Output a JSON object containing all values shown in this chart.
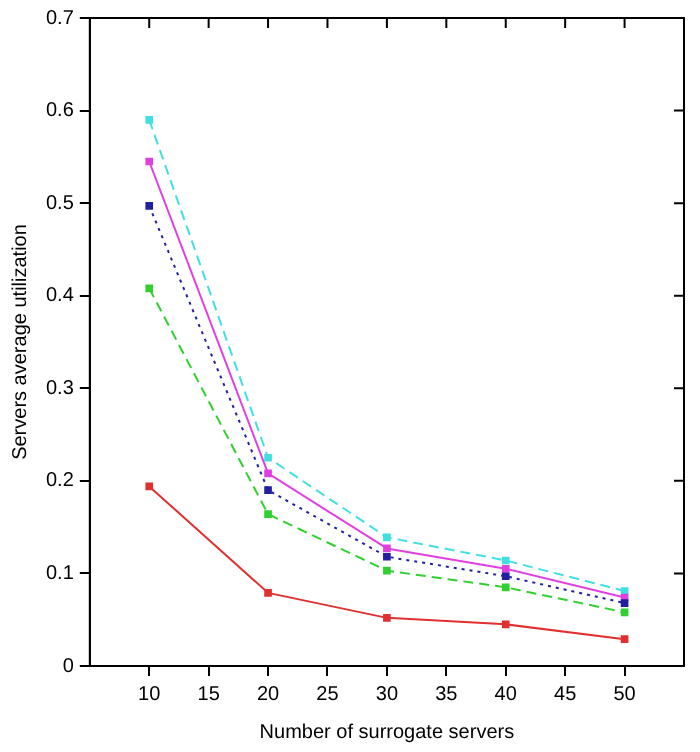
{
  "chart_data": {
    "type": "line",
    "xlabel": "Number of surrogate servers",
    "ylabel": "Servers average utilization",
    "x": [
      10,
      20,
      30,
      40,
      50
    ],
    "xlim": [
      5,
      55
    ],
    "xticks": [
      10,
      15,
      20,
      25,
      30,
      35,
      40,
      45,
      50
    ],
    "ylim": [
      0,
      0.7
    ],
    "yticks": [
      0,
      0.1,
      0.2,
      0.3,
      0.4,
      0.5,
      0.6,
      0.7
    ],
    "grid": false,
    "legend": false,
    "marker": "square",
    "series": [
      {
        "color": "#e03030",
        "values": [
          0.194,
          0.079,
          0.052,
          0.045,
          0.029
        ],
        "line_style": "solid"
      },
      {
        "color": "#30d030",
        "values": [
          0.408,
          0.164,
          0.103,
          0.085,
          0.058
        ],
        "line_style": "dashed"
      },
      {
        "color": "#2020a0",
        "values": [
          0.497,
          0.19,
          0.118,
          0.097,
          0.068
        ],
        "line_style": "dotted"
      },
      {
        "color": "#e040e0",
        "values": [
          0.545,
          0.208,
          0.127,
          0.105,
          0.074
        ],
        "line_style": "solid"
      },
      {
        "color": "#40e0e0",
        "values": [
          0.59,
          0.225,
          0.139,
          0.114,
          0.081
        ],
        "line_style": "dashed"
      }
    ]
  }
}
